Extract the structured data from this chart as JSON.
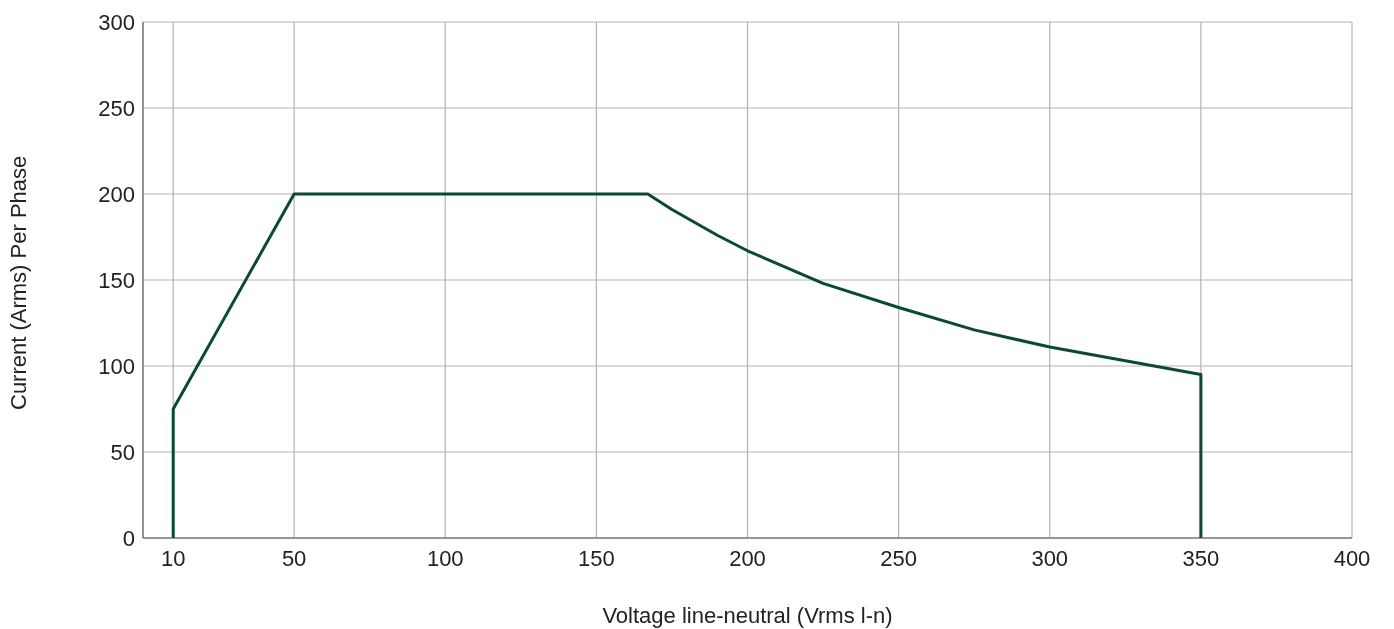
{
  "chart_data": {
    "type": "line",
    "xlabel": "Voltage line-neutral (Vrms l-n)",
    "ylabel": "Current (Arms) Per Phase",
    "x": [
      10,
      10,
      50,
      167,
      175,
      190,
      200,
      225,
      250,
      275,
      300,
      325,
      350,
      350
    ],
    "series": [
      {
        "color": "#0b4a2c",
        "values": [
          0,
          75,
          200,
          200,
          191,
          176,
          167,
          148,
          134,
          121,
          111,
          103,
          95,
          0
        ]
      }
    ],
    "xlim": [
      0,
      400
    ],
    "xticks": [
      10,
      50,
      100,
      150,
      200,
      250,
      300,
      350,
      400
    ],
    "ylim": [
      0,
      300
    ],
    "yticks": [
      0,
      50,
      100,
      150,
      200,
      250,
      300
    ],
    "grid": true,
    "line_style": "solid"
  }
}
